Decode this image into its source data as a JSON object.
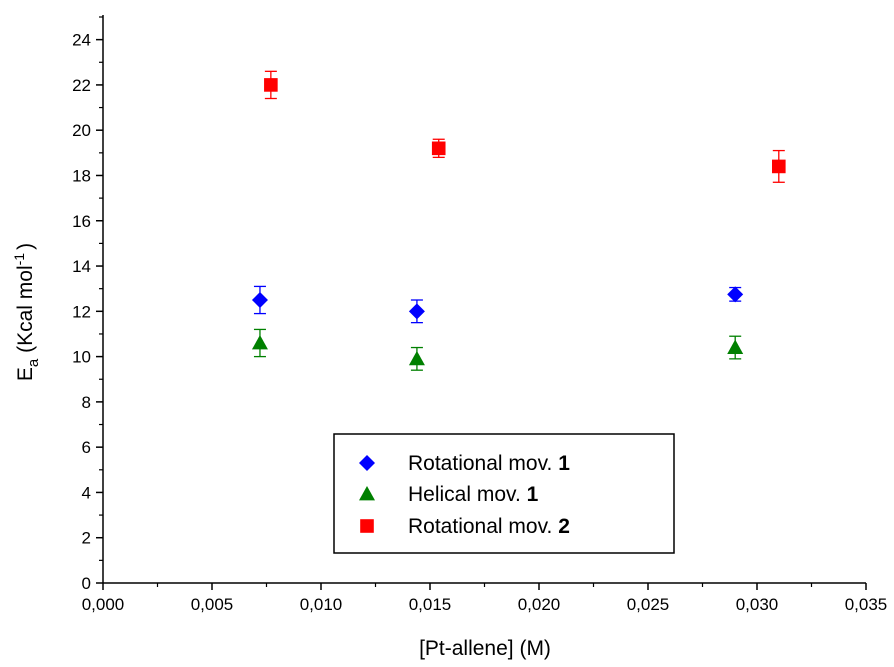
{
  "chart_data": {
    "type": "scatter",
    "xlabel": "[Pt-allene] (M)",
    "ylabel": {
      "main": "E",
      "subscript": "a",
      "unit_open": " (Kcal mol",
      "unit_sup": "-1",
      "unit_close": ")"
    },
    "xlim": [
      0,
      0.035
    ],
    "ylim": [
      0,
      25
    ],
    "x_ticks": [
      {
        "value": 0.0,
        "label": "0,000"
      },
      {
        "value": 0.005,
        "label": "0,005"
      },
      {
        "value": 0.01,
        "label": "0,010"
      },
      {
        "value": 0.015,
        "label": "0,015"
      },
      {
        "value": 0.02,
        "label": "0,020"
      },
      {
        "value": 0.025,
        "label": "0,025"
      },
      {
        "value": 0.03,
        "label": "0,030"
      },
      {
        "value": 0.035,
        "label": "0,035"
      }
    ],
    "y_ticks": [
      {
        "value": 0,
        "label": "0"
      },
      {
        "value": 2,
        "label": "2"
      },
      {
        "value": 4,
        "label": "4"
      },
      {
        "value": 6,
        "label": "6"
      },
      {
        "value": 8,
        "label": "8"
      },
      {
        "value": 10,
        "label": "10"
      },
      {
        "value": 12,
        "label": "12"
      },
      {
        "value": 14,
        "label": "14"
      },
      {
        "value": 16,
        "label": "16"
      },
      {
        "value": 18,
        "label": "18"
      },
      {
        "value": 20,
        "label": "20"
      },
      {
        "value": 22,
        "label": "22"
      },
      {
        "value": 24,
        "label": "24"
      }
    ],
    "grid": false,
    "legend_position": "bottom-center",
    "series": [
      {
        "name": "Rotational mov.",
        "name_bold": "1",
        "marker": "diamond",
        "color": "#0000ff",
        "points": [
          {
            "x": 0.0072,
            "y": 12.5,
            "err": 0.6
          },
          {
            "x": 0.0144,
            "y": 12.0,
            "err": 0.5
          },
          {
            "x": 0.029,
            "y": 12.75,
            "err": 0.3
          }
        ]
      },
      {
        "name": "Helical mov.",
        "name_bold": "1",
        "marker": "triangle",
        "color": "#008000",
        "points": [
          {
            "x": 0.0072,
            "y": 10.6,
            "err": 0.6
          },
          {
            "x": 0.0144,
            "y": 9.9,
            "err": 0.5
          },
          {
            "x": 0.029,
            "y": 10.4,
            "err": 0.5
          }
        ]
      },
      {
        "name": "Rotational mov.",
        "name_bold": "2",
        "marker": "square",
        "color": "#ff0000",
        "points": [
          {
            "x": 0.0077,
            "y": 22.0,
            "err": 0.6
          },
          {
            "x": 0.0154,
            "y": 19.2,
            "err": 0.4
          },
          {
            "x": 0.031,
            "y": 18.4,
            "err": 0.7
          }
        ]
      }
    ]
  }
}
